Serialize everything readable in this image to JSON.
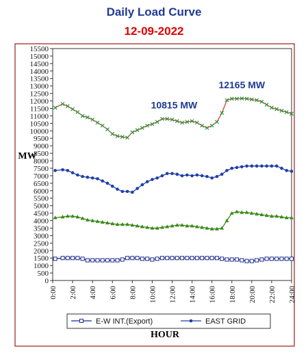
{
  "header": {
    "title": "Daily Load Curve",
    "date": "12-09-2022"
  },
  "chart_data": {
    "type": "line",
    "ylabel": "MW",
    "xlabel": "HOUR",
    "ylim": [
      0,
      15500
    ],
    "yticks": [
      0,
      500,
      1000,
      1500,
      2000,
      2500,
      3000,
      3500,
      4000,
      4500,
      5000,
      5500,
      6000,
      6500,
      7000,
      7500,
      8000,
      8500,
      9000,
      9500,
      10000,
      10500,
      11000,
      11500,
      12000,
      12500,
      13000,
      13500,
      14000,
      14500,
      15000,
      15500
    ],
    "xlim": [
      0,
      24
    ],
    "xticks": [
      "0:00",
      "2:00",
      "4:00",
      "6:00",
      "8:00",
      "10:00",
      "12:00",
      "14:00",
      "16:00",
      "18:00",
      "20:00",
      "22:00",
      "24:00"
    ],
    "x": [
      0.25,
      1,
      1.5,
      2,
      2.5,
      3,
      3.5,
      4,
      4.5,
      5,
      5.5,
      6,
      6.5,
      7,
      7.5,
      8,
      8.5,
      9,
      9.5,
      10,
      10.5,
      11,
      11.5,
      12,
      12.5,
      13,
      13.5,
      14,
      14.5,
      15,
      15.5,
      16,
      16.5,
      17,
      17.5,
      18,
      18.5,
      19,
      19.5,
      20,
      20.5,
      21,
      21.5,
      22,
      22.5,
      23,
      23.5,
      24
    ],
    "series": [
      {
        "name": "",
        "color": "#e0403a",
        "marker": "x",
        "marker_color": "#1a9a3a",
        "values": [
          11550,
          11800,
          11650,
          11450,
          11250,
          11000,
          10900,
          10750,
          10550,
          10350,
          10100,
          9800,
          9650,
          9600,
          9550,
          9900,
          10050,
          10200,
          10350,
          10450,
          10600,
          10800,
          10800,
          10750,
          10650,
          10550,
          10600,
          10650,
          10550,
          10350,
          10200,
          10350,
          10600,
          11200,
          12050,
          12150,
          12150,
          12165,
          12150,
          12100,
          12050,
          11950,
          11750,
          11550,
          11450,
          11350,
          11250,
          11150
        ]
      },
      {
        "name": "EAST GRID",
        "color": "#1f3ea8",
        "marker": "dot",
        "values": [
          7350,
          7400,
          7350,
          7200,
          7050,
          6950,
          6900,
          6850,
          6800,
          6650,
          6500,
          6300,
          6100,
          5950,
          5950,
          5900,
          6150,
          6400,
          6600,
          6750,
          6850,
          7000,
          7150,
          7150,
          7100,
          7000,
          7050,
          7000,
          7050,
          7000,
          6950,
          6850,
          6950,
          7100,
          7350,
          7500,
          7550,
          7600,
          7650,
          7650,
          7650,
          7650,
          7650,
          7650,
          7650,
          7500,
          7350,
          7300
        ]
      },
      {
        "name": "",
        "color": "#3a8a1a",
        "marker": "triangle",
        "values": [
          4200,
          4250,
          4300,
          4300,
          4250,
          4150,
          4050,
          4000,
          3950,
          3900,
          3850,
          3800,
          3750,
          3750,
          3750,
          3700,
          3650,
          3600,
          3550,
          3500,
          3500,
          3550,
          3600,
          3650,
          3700,
          3700,
          3650,
          3650,
          3600,
          3550,
          3500,
          3450,
          3450,
          3500,
          4000,
          4500,
          4600,
          4550,
          4550,
          4500,
          4450,
          4400,
          4350,
          4300,
          4300,
          4250,
          4200,
          4200
        ]
      },
      {
        "name": "E-W INT.(Export)",
        "color": "#1a2a8a",
        "marker": "square",
        "values": [
          1450,
          1500,
          1500,
          1500,
          1500,
          1450,
          1350,
          1350,
          1350,
          1350,
          1350,
          1350,
          1350,
          1400,
          1500,
          1500,
          1500,
          1450,
          1450,
          1400,
          1450,
          1500,
          1500,
          1500,
          1500,
          1500,
          1500,
          1500,
          1500,
          1500,
          1500,
          1500,
          1500,
          1450,
          1400,
          1400,
          1400,
          1350,
          1300,
          1300,
          1350,
          1400,
          1450,
          1450,
          1450,
          1450,
          1450,
          1450
        ]
      }
    ],
    "annotations": [
      {
        "text": "10815 MW",
        "x": 12.2,
        "y": 11500
      },
      {
        "text": "12165 MW",
        "x": 19.0,
        "y": 12850
      }
    ],
    "grid": false,
    "legend": "bottom"
  }
}
